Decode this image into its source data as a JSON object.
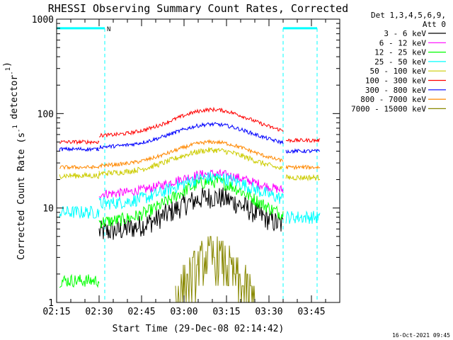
{
  "chart_data": {
    "type": "line",
    "title": "RHESSI Observing Summary Count Rates, Corrected",
    "xlabel": "Start Time (29-Dec-08 02:14:42)",
    "ylabel": "Corrected Count Rate (s⁻¹ detector⁻¹)",
    "y_scale": "log",
    "ylim": [
      1,
      1000
    ],
    "xlim_minutes_after_0215": [
      0,
      100
    ],
    "x_ticks": [
      "02:15",
      "02:30",
      "02:45",
      "03:00",
      "03:15",
      "03:30",
      "03:45"
    ],
    "y_ticks": [
      "1",
      "10",
      "100",
      "1000"
    ],
    "grid": false,
    "legend_placement": "right",
    "legend_header": [
      "Det 1,3,4,5,6,9,",
      "Att 0"
    ],
    "background": "#ffffff",
    "axis_color": "#000000",
    "flags": {
      "color": "#00ffff",
      "night_label": "N",
      "night_intervals_time": [
        [
          "02:15",
          "02:32"
        ],
        [
          "03:35",
          "03:47"
        ]
      ],
      "dashed_boundaries_time": [
        "02:15",
        "02:32",
        "03:35",
        "03:47"
      ]
    },
    "segments": [
      {
        "start": "02:16",
        "end": "02:30"
      },
      {
        "start": "02:30",
        "end": "03:35"
      },
      {
        "start": "03:36",
        "end": "03:48"
      }
    ],
    "series": [
      {
        "name": "3 - 6 keV",
        "color": "#000000",
        "segment1_level": null,
        "segment3_level": null,
        "baseline": 5.5,
        "peak": 13,
        "peak_time": "03:10",
        "noise": 0.12
      },
      {
        "name": "6 - 12 keV",
        "color": "#ff00ff",
        "segment1_level": null,
        "segment3_level": null,
        "baseline": 14,
        "peak": 23,
        "peak_time": "03:10",
        "noise": 0.05
      },
      {
        "name": "12 - 25 keV",
        "color": "#00ff00",
        "segment1_level": 1.7,
        "segment3_level": null,
        "baseline": 7,
        "peak": 19,
        "peak_time": "03:10",
        "noise": 0.07
      },
      {
        "name": "25 - 50 keV",
        "color": "#00ffff",
        "segment1_level": 9,
        "segment3_level": 8,
        "baseline": 11,
        "peak": 21,
        "peak_time": "03:10",
        "noise": 0.07
      },
      {
        "name": "50 - 100 keV",
        "color": "#cccc00",
        "segment1_level": 22,
        "segment3_level": 21,
        "baseline": 23,
        "peak": 41,
        "peak_time": "03:10",
        "noise": 0.03
      },
      {
        "name": "100 - 300 keV",
        "color": "#ff0000",
        "segment1_level": 50,
        "segment3_level": 52,
        "baseline": 58,
        "peak": 110,
        "peak_time": "03:10",
        "noise": 0.02
      },
      {
        "name": "300 - 800 keV",
        "color": "#0000ff",
        "segment1_level": 42,
        "segment3_level": 40,
        "baseline": 44,
        "peak": 77,
        "peak_time": "03:10",
        "noise": 0.02
      },
      {
        "name": "800 - 7000 keV",
        "color": "#ff8800",
        "segment1_level": 27,
        "segment3_level": 27,
        "baseline": 28,
        "peak": 50,
        "peak_time": "03:10",
        "noise": 0.02
      },
      {
        "name": "7000 - 15000 keV",
        "color": "#888800",
        "segment1_level": null,
        "segment3_level": null,
        "baseline": 1,
        "peak": 3,
        "peak_time": "03:10",
        "noise": 0.25,
        "active_window": [
          "02:57",
          "03:25"
        ]
      }
    ]
  },
  "footer": {
    "timestamp": "16-Oct-2021 09:45"
  }
}
